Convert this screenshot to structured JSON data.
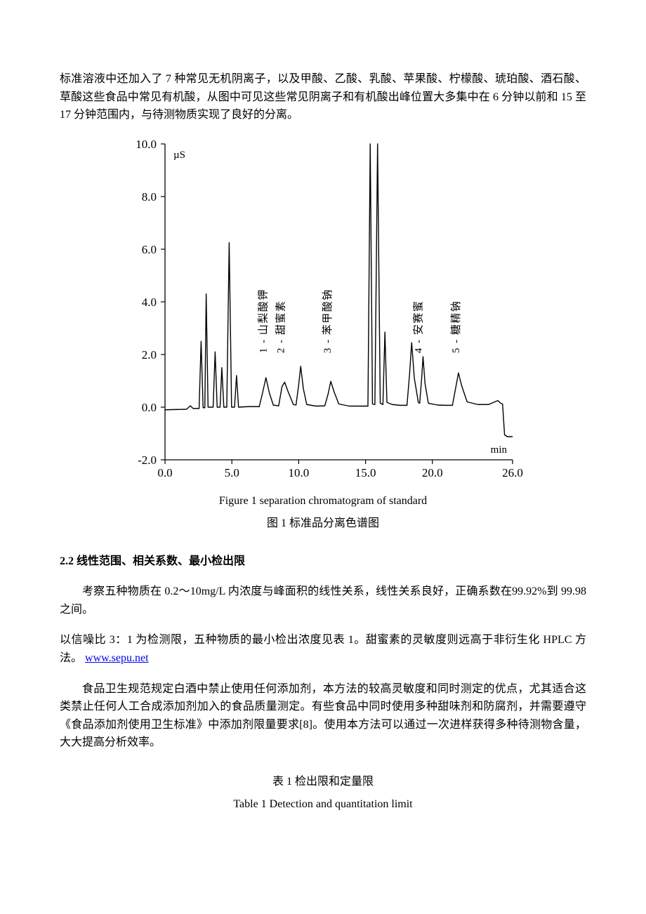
{
  "intro": {
    "para": "标准溶液中还加入了 7 种常见无机阴离子，以及甲酸、乙酸、乳酸、苹果酸、柠檬酸、琥珀酸、酒石酸、草酸这些食品中常见有机酸，从图中可见这些常见阴离子和有机酸出峰位置大多集中在 6 分钟以前和 15 至 17 分钟范围内，与待测物质实现了良好的分离。"
  },
  "chart": {
    "type": "line",
    "xlim": [
      0,
      26
    ],
    "ylim": [
      -2,
      10
    ],
    "xticks": [
      0.0,
      5.0,
      10.0,
      15.0,
      20.0,
      26.0
    ],
    "xtick_labels": [
      "0.0",
      "5.0",
      "10.0",
      "15.0",
      "20.0",
      "26.0"
    ],
    "yticks": [
      -2.0,
      0.0,
      2.0,
      4.0,
      6.0,
      8.0,
      10.0
    ],
    "ytick_labels": [
      "-2.0",
      "0.0",
      "2.0",
      "4.0",
      "6.0",
      "8.0",
      "10.0"
    ],
    "y_unit": "µS",
    "x_unit": "min",
    "axis_color": "#000000",
    "line_color": "#000000",
    "line_width": 1.4,
    "background_color": "#ffffff",
    "label_fontsize": 15,
    "tick_fontsize": 17,
    "peak_labels": [
      {
        "text": "1 - 山梨酸钾",
        "x": 7.6
      },
      {
        "text": "2 - 甜蜜素",
        "x": 8.9
      },
      {
        "text": "3 - 苯甲酸钠",
        "x": 12.4
      },
      {
        "text": "4 - 安赛蜜",
        "x": 19.2
      },
      {
        "text": "5 - 糖精钠",
        "x": 22.0
      }
    ],
    "trace": [
      [
        0.0,
        -0.1
      ],
      [
        1.6,
        -0.08
      ],
      [
        1.9,
        0.05
      ],
      [
        2.1,
        -0.05
      ],
      [
        2.55,
        -0.05
      ],
      [
        2.7,
        2.5
      ],
      [
        2.85,
        -0.02
      ],
      [
        2.98,
        -0.02
      ],
      [
        3.08,
        4.3
      ],
      [
        3.22,
        0.0
      ],
      [
        3.6,
        0.0
      ],
      [
        3.75,
        2.1
      ],
      [
        3.9,
        0.0
      ],
      [
        4.12,
        0.0
      ],
      [
        4.25,
        1.5
      ],
      [
        4.4,
        0.0
      ],
      [
        4.62,
        0.0
      ],
      [
        4.8,
        6.25
      ],
      [
        4.98,
        0.0
      ],
      [
        5.2,
        0.0
      ],
      [
        5.35,
        1.2
      ],
      [
        5.5,
        0.0
      ],
      [
        6.2,
        0.02
      ],
      [
        7.05,
        0.02
      ],
      [
        7.3,
        0.55
      ],
      [
        7.55,
        1.12
      ],
      [
        7.8,
        0.55
      ],
      [
        8.1,
        0.08
      ],
      [
        8.5,
        0.05
      ],
      [
        8.75,
        0.78
      ],
      [
        8.95,
        0.95
      ],
      [
        9.2,
        0.6
      ],
      [
        9.6,
        0.1
      ],
      [
        9.8,
        0.08
      ],
      [
        10.0,
        0.85
      ],
      [
        10.15,
        1.55
      ],
      [
        10.35,
        0.7
      ],
      [
        10.6,
        0.1
      ],
      [
        11.3,
        0.04
      ],
      [
        11.95,
        0.05
      ],
      [
        12.2,
        0.5
      ],
      [
        12.4,
        0.98
      ],
      [
        12.65,
        0.58
      ],
      [
        13.0,
        0.12
      ],
      [
        13.8,
        0.04
      ],
      [
        14.6,
        0.04
      ],
      [
        15.18,
        0.04
      ],
      [
        15.35,
        14.0
      ],
      [
        15.52,
        0.12
      ],
      [
        15.7,
        0.1
      ],
      [
        15.9,
        14.0
      ],
      [
        16.1,
        0.15
      ],
      [
        16.3,
        0.1
      ],
      [
        16.45,
        2.85
      ],
      [
        16.6,
        0.18
      ],
      [
        17.0,
        0.1
      ],
      [
        17.6,
        0.07
      ],
      [
        18.1,
        0.07
      ],
      [
        18.3,
        1.3
      ],
      [
        18.45,
        2.45
      ],
      [
        18.65,
        1.1
      ],
      [
        18.95,
        0.18
      ],
      [
        19.05,
        0.15
      ],
      [
        19.2,
        1.1
      ],
      [
        19.3,
        1.92
      ],
      [
        19.45,
        0.9
      ],
      [
        19.7,
        0.15
      ],
      [
        20.4,
        0.08
      ],
      [
        21.0,
        0.07
      ],
      [
        21.5,
        0.07
      ],
      [
        21.75,
        0.75
      ],
      [
        21.95,
        1.3
      ],
      [
        22.2,
        0.8
      ],
      [
        22.6,
        0.2
      ],
      [
        23.4,
        0.1
      ],
      [
        24.2,
        0.1
      ],
      [
        24.9,
        0.25
      ],
      [
        25.1,
        0.15
      ],
      [
        25.25,
        0.12
      ],
      [
        25.4,
        -1.05
      ],
      [
        25.6,
        -1.12
      ],
      [
        26.0,
        -1.12
      ]
    ],
    "caption_en": "Figure 1 separation chromatogram of standard",
    "caption_zh": "图 1 标准品分离色谱图"
  },
  "section22": {
    "heading": "2.2  线性范围、相关系数、最小检出限",
    "p1": "考察五种物质在 0.2～10mg/L 内浓度与峰面积的线性关系，线性关系良好，正确系数在99.92%到 99.98 之间。",
    "p2a": "以信噪比 3：1 为检测限，五种物质的最小检出浓度见表 1。甜蜜素的灵敏度则远高于非衍生化 HPLC 方法。",
    "link_text": "www.sepu.net",
    "p3": "食品卫生规范规定白酒中禁止使用任何添加剂，本方法的较高灵敏度和同时测定的优点，尤其适合这类禁止任何人工合成添加剂加入的食品质量测定。有些食品中同时使用多种甜味剂和防腐剂，并需要遵守《食品添加剂使用卫生标准》中添加剂限量要求[8]。使用本方法可以通过一次进样获得多种待测物含量，大大提高分析效率。"
  },
  "table1": {
    "caption_zh": "表 1 检出限和定量限",
    "caption_en": "Table 1 Detection and quantitation limit"
  }
}
